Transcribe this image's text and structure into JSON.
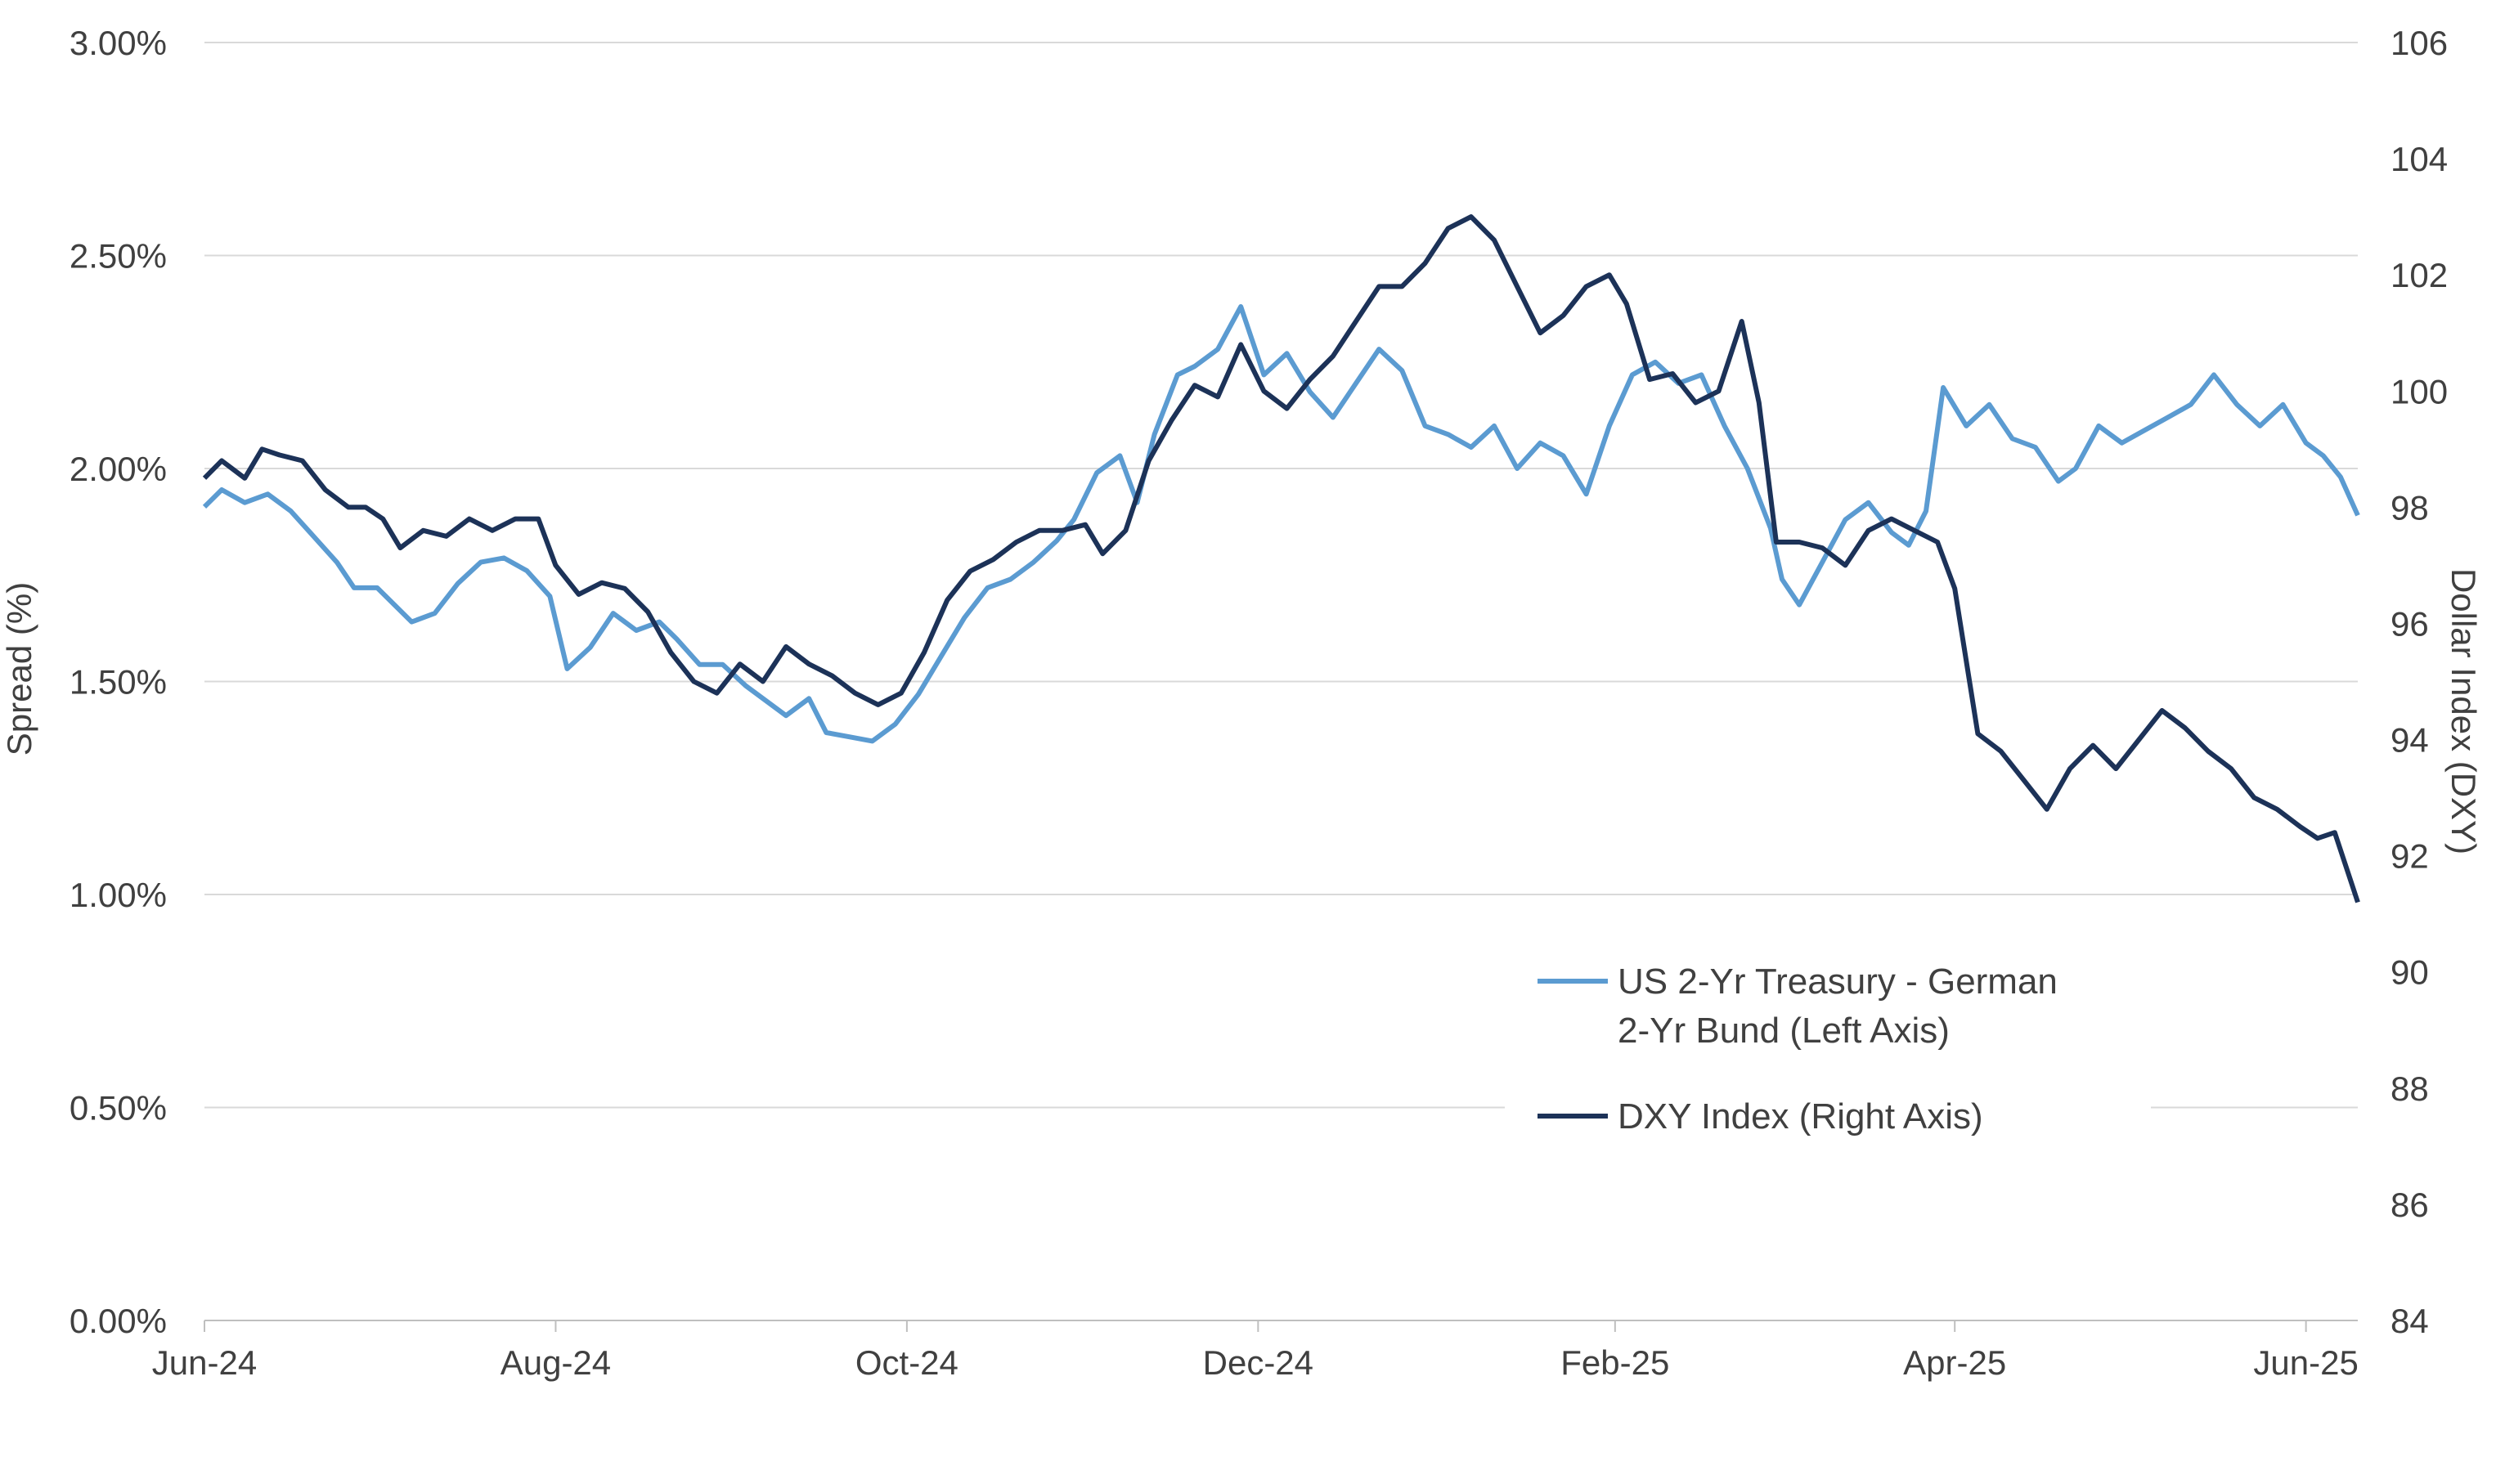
{
  "chart_data": {
    "type": "line",
    "title": "",
    "x_ticks": [
      "Jun-24",
      "Aug-24",
      "Oct-24",
      "Dec-24",
      "Feb-25",
      "Apr-25",
      "Jun-25"
    ],
    "x_range": [
      "2024-06-01",
      "2025-06-10"
    ],
    "left_axis": {
      "label": "Spread (%)",
      "ylim": [
        0,
        3
      ],
      "ticks": [
        "0.00%",
        "0.50%",
        "1.00%",
        "1.50%",
        "2.00%",
        "2.50%",
        "3.00%"
      ],
      "tick_values": [
        0,
        0.5,
        1,
        1.5,
        2,
        2.5,
        3
      ]
    },
    "right_axis": {
      "label": "Dollar Index (DXY)",
      "ylim": [
        84,
        106
      ],
      "ticks": [
        "84",
        "86",
        "88",
        "90",
        "92",
        "94",
        "96",
        "98",
        "100",
        "102",
        "104",
        "106"
      ],
      "tick_values": [
        84,
        86,
        88,
        90,
        92,
        94,
        96,
        98,
        100,
        102,
        104,
        106
      ]
    },
    "grid": true,
    "legend_position": "bottom-right",
    "series": [
      {
        "name": "US 2-Yr Treasury - German 2-Yr Bund (Left Axis)",
        "legend_lines": [
          "US 2-Yr Treasury - German",
          "2-Yr Bund (Left Axis)"
        ],
        "axis": "left",
        "color": "#5b9bd1",
        "points": [
          [
            "2024-06-01",
            1.91
          ],
          [
            "2024-06-04",
            1.95
          ],
          [
            "2024-06-08",
            1.92
          ],
          [
            "2024-06-12",
            1.94
          ],
          [
            "2024-06-16",
            1.9
          ],
          [
            "2024-06-20",
            1.84
          ],
          [
            "2024-06-24",
            1.78
          ],
          [
            "2024-06-27",
            1.72
          ],
          [
            "2024-07-01",
            1.72
          ],
          [
            "2024-07-04",
            1.68
          ],
          [
            "2024-07-07",
            1.64
          ],
          [
            "2024-07-11",
            1.66
          ],
          [
            "2024-07-15",
            1.73
          ],
          [
            "2024-07-19",
            1.78
          ],
          [
            "2024-07-23",
            1.79
          ],
          [
            "2024-07-27",
            1.76
          ],
          [
            "2024-07-31",
            1.7
          ],
          [
            "2024-08-03",
            1.53
          ],
          [
            "2024-08-07",
            1.58
          ],
          [
            "2024-08-11",
            1.66
          ],
          [
            "2024-08-15",
            1.62
          ],
          [
            "2024-08-19",
            1.64
          ],
          [
            "2024-08-22",
            1.6
          ],
          [
            "2024-08-26",
            1.54
          ],
          [
            "2024-08-30",
            1.54
          ],
          [
            "2024-09-03",
            1.49
          ],
          [
            "2024-09-06",
            1.46
          ],
          [
            "2024-09-10",
            1.42
          ],
          [
            "2024-09-14",
            1.46
          ],
          [
            "2024-09-17",
            1.38
          ],
          [
            "2024-09-21",
            1.37
          ],
          [
            "2024-09-25",
            1.36
          ],
          [
            "2024-09-29",
            1.4
          ],
          [
            "2024-10-03",
            1.47
          ],
          [
            "2024-10-07",
            1.56
          ],
          [
            "2024-10-11",
            1.65
          ],
          [
            "2024-10-15",
            1.72
          ],
          [
            "2024-10-19",
            1.74
          ],
          [
            "2024-10-23",
            1.78
          ],
          [
            "2024-10-27",
            1.83
          ],
          [
            "2024-10-30",
            1.88
          ],
          [
            "2024-11-03",
            1.99
          ],
          [
            "2024-11-07",
            2.03
          ],
          [
            "2024-11-10",
            1.92
          ],
          [
            "2024-11-13",
            2.08
          ],
          [
            "2024-11-17",
            2.22
          ],
          [
            "2024-11-20",
            2.24
          ],
          [
            "2024-11-24",
            2.28
          ],
          [
            "2024-11-28",
            2.38
          ],
          [
            "2024-12-02",
            2.22
          ],
          [
            "2024-12-06",
            2.27
          ],
          [
            "2024-12-10",
            2.18
          ],
          [
            "2024-12-14",
            2.12
          ],
          [
            "2024-12-18",
            2.2
          ],
          [
            "2024-12-22",
            2.28
          ],
          [
            "2024-12-26",
            2.23
          ],
          [
            "2024-12-30",
            2.1
          ],
          [
            "2025-01-03",
            2.08
          ],
          [
            "2025-01-07",
            2.05
          ],
          [
            "2025-01-11",
            2.1
          ],
          [
            "2025-01-15",
            2.0
          ],
          [
            "2025-01-19",
            2.06
          ],
          [
            "2025-01-23",
            2.03
          ],
          [
            "2025-01-27",
            1.94
          ],
          [
            "2025-01-31",
            2.1
          ],
          [
            "2025-02-04",
            2.22
          ],
          [
            "2025-02-08",
            2.25
          ],
          [
            "2025-02-12",
            2.2
          ],
          [
            "2025-02-16",
            2.22
          ],
          [
            "2025-02-20",
            2.1
          ],
          [
            "2025-02-24",
            2.0
          ],
          [
            "2025-02-28",
            1.86
          ],
          [
            "2025-03-02",
            1.74
          ],
          [
            "2025-03-05",
            1.68
          ],
          [
            "2025-03-09",
            1.78
          ],
          [
            "2025-03-13",
            1.88
          ],
          [
            "2025-03-17",
            1.92
          ],
          [
            "2025-03-21",
            1.85
          ],
          [
            "2025-03-24",
            1.82
          ],
          [
            "2025-03-27",
            1.9
          ],
          [
            "2025-03-30",
            2.19
          ],
          [
            "2025-04-03",
            2.1
          ],
          [
            "2025-04-07",
            2.15
          ],
          [
            "2025-04-11",
            2.07
          ],
          [
            "2025-04-15",
            2.05
          ],
          [
            "2025-04-19",
            1.97
          ],
          [
            "2025-04-22",
            2.0
          ],
          [
            "2025-04-26",
            2.1
          ],
          [
            "2025-04-30",
            2.06
          ],
          [
            "2025-05-04",
            2.09
          ],
          [
            "2025-05-08",
            2.12
          ],
          [
            "2025-05-12",
            2.15
          ],
          [
            "2025-05-16",
            2.22
          ],
          [
            "2025-05-20",
            2.15
          ],
          [
            "2025-05-24",
            2.1
          ],
          [
            "2025-05-28",
            2.15
          ],
          [
            "2025-06-01",
            2.06
          ],
          [
            "2025-06-04",
            2.03
          ],
          [
            "2025-06-07",
            1.98
          ],
          [
            "2025-06-10",
            1.89
          ]
        ]
      },
      {
        "name": "DXY Index (Right Axis)",
        "legend_lines": [
          "DXY Index (Right Axis)"
        ],
        "axis": "right",
        "color": "#1c3258",
        "points": [
          [
            "2024-06-01",
            98.5
          ],
          [
            "2024-06-04",
            98.8
          ],
          [
            "2024-06-08",
            98.5
          ],
          [
            "2024-06-11",
            99.0
          ],
          [
            "2024-06-14",
            98.9
          ],
          [
            "2024-06-18",
            98.8
          ],
          [
            "2024-06-22",
            98.3
          ],
          [
            "2024-06-26",
            98.0
          ],
          [
            "2024-06-29",
            98.0
          ],
          [
            "2024-07-02",
            97.8
          ],
          [
            "2024-07-05",
            97.3
          ],
          [
            "2024-07-09",
            97.6
          ],
          [
            "2024-07-13",
            97.5
          ],
          [
            "2024-07-17",
            97.8
          ],
          [
            "2024-07-21",
            97.6
          ],
          [
            "2024-07-25",
            97.8
          ],
          [
            "2024-07-29",
            97.8
          ],
          [
            "2024-08-01",
            97.0
          ],
          [
            "2024-08-05",
            96.5
          ],
          [
            "2024-08-09",
            96.7
          ],
          [
            "2024-08-13",
            96.6
          ],
          [
            "2024-08-17",
            96.2
          ],
          [
            "2024-08-21",
            95.5
          ],
          [
            "2024-08-25",
            95.0
          ],
          [
            "2024-08-29",
            94.8
          ],
          [
            "2024-09-02",
            95.3
          ],
          [
            "2024-09-06",
            95.0
          ],
          [
            "2024-09-10",
            95.6
          ],
          [
            "2024-09-14",
            95.3
          ],
          [
            "2024-09-18",
            95.1
          ],
          [
            "2024-09-22",
            94.8
          ],
          [
            "2024-09-26",
            94.6
          ],
          [
            "2024-09-30",
            94.8
          ],
          [
            "2024-10-04",
            95.5
          ],
          [
            "2024-10-08",
            96.4
          ],
          [
            "2024-10-12",
            96.9
          ],
          [
            "2024-10-16",
            97.1
          ],
          [
            "2024-10-20",
            97.4
          ],
          [
            "2024-10-24",
            97.6
          ],
          [
            "2024-10-28",
            97.6
          ],
          [
            "2024-11-01",
            97.7
          ],
          [
            "2024-11-04",
            97.2
          ],
          [
            "2024-11-08",
            97.6
          ],
          [
            "2024-11-12",
            98.8
          ],
          [
            "2024-11-16",
            99.5
          ],
          [
            "2024-11-20",
            100.1
          ],
          [
            "2024-11-24",
            99.9
          ],
          [
            "2024-11-28",
            100.8
          ],
          [
            "2024-12-02",
            100.0
          ],
          [
            "2024-12-06",
            99.7
          ],
          [
            "2024-12-10",
            100.2
          ],
          [
            "2024-12-14",
            100.6
          ],
          [
            "2024-12-18",
            101.2
          ],
          [
            "2024-12-22",
            101.8
          ],
          [
            "2024-12-26",
            101.8
          ],
          [
            "2024-12-30",
            102.2
          ],
          [
            "2025-01-03",
            102.8
          ],
          [
            "2025-01-07",
            103.0
          ],
          [
            "2025-01-11",
            102.6
          ],
          [
            "2025-01-15",
            101.8
          ],
          [
            "2025-01-19",
            101.0
          ],
          [
            "2025-01-23",
            101.3
          ],
          [
            "2025-01-27",
            101.8
          ],
          [
            "2025-01-31",
            102.0
          ],
          [
            "2025-02-03",
            101.5
          ],
          [
            "2025-02-07",
            100.2
          ],
          [
            "2025-02-11",
            100.3
          ],
          [
            "2025-02-15",
            99.8
          ],
          [
            "2025-02-19",
            100.0
          ],
          [
            "2025-02-23",
            101.2
          ],
          [
            "2025-02-26",
            99.8
          ],
          [
            "2025-03-01",
            97.4
          ],
          [
            "2025-03-05",
            97.4
          ],
          [
            "2025-03-09",
            97.3
          ],
          [
            "2025-03-13",
            97.0
          ],
          [
            "2025-03-17",
            97.6
          ],
          [
            "2025-03-21",
            97.8
          ],
          [
            "2025-03-25",
            97.6
          ],
          [
            "2025-03-29",
            97.4
          ],
          [
            "2025-04-01",
            96.6
          ],
          [
            "2025-04-05",
            94.1
          ],
          [
            "2025-04-09",
            93.8
          ],
          [
            "2025-04-13",
            93.3
          ],
          [
            "2025-04-17",
            92.8
          ],
          [
            "2025-04-21",
            93.5
          ],
          [
            "2025-04-25",
            93.9
          ],
          [
            "2025-04-29",
            93.5
          ],
          [
            "2025-05-03",
            94.0
          ],
          [
            "2025-05-07",
            94.5
          ],
          [
            "2025-05-11",
            94.2
          ],
          [
            "2025-05-15",
            93.8
          ],
          [
            "2025-05-19",
            93.5
          ],
          [
            "2025-05-23",
            93.0
          ],
          [
            "2025-05-27",
            92.8
          ],
          [
            "2025-05-31",
            92.5
          ],
          [
            "2025-06-03",
            92.3
          ],
          [
            "2025-06-06",
            92.4
          ],
          [
            "2025-06-09",
            91.5
          ],
          [
            "2025-06-10",
            91.2
          ]
        ]
      }
    ]
  }
}
